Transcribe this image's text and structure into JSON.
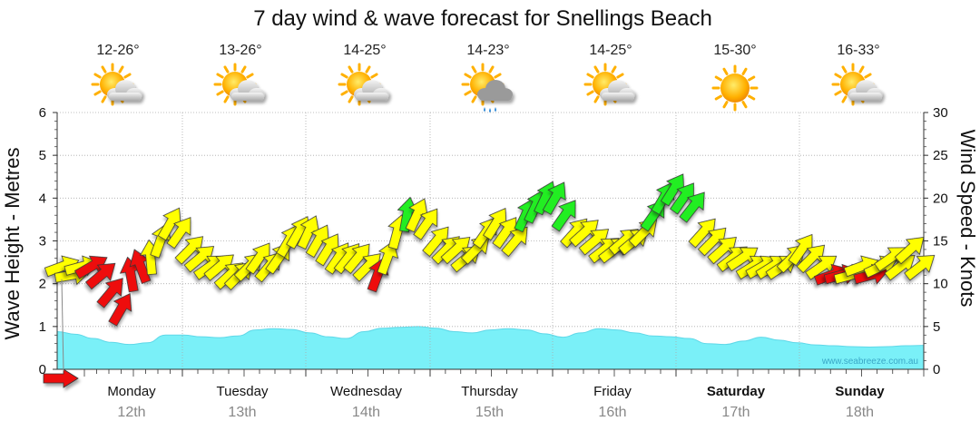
{
  "chart_data": {
    "type": "line",
    "title": "7 day wind & wave forecast for Snellings Beach",
    "y_left_label": "Wave Height - Metres",
    "y_right_label": "Wind Speed - Knots",
    "y_left_range": [
      0,
      6
    ],
    "y_left_ticks": [
      "0",
      "1",
      "2",
      "3",
      "4",
      "5",
      "6"
    ],
    "y_right_range": [
      0,
      30
    ],
    "y_right_ticks": [
      "0",
      "5",
      "10",
      "15",
      "20",
      "25",
      "30"
    ],
    "days": [
      {
        "name": "Monday",
        "date": "12th",
        "temp": "12-26°",
        "weather": "partly-cloudy",
        "bold": false
      },
      {
        "name": "Tuesday",
        "date": "13th",
        "temp": "13-26°",
        "weather": "partly-cloudy",
        "bold": false
      },
      {
        "name": "Wednesday",
        "date": "14th",
        "temp": "14-25°",
        "weather": "partly-cloudy",
        "bold": false
      },
      {
        "name": "Thursday",
        "date": "15th",
        "temp": "14-23°",
        "weather": "showers",
        "bold": false
      },
      {
        "name": "Friday",
        "date": "16th",
        "temp": "14-25°",
        "weather": "partly-cloudy",
        "bold": false
      },
      {
        "name": "Saturday",
        "date": "17th",
        "temp": "15-30°",
        "weather": "sunny",
        "bold": true
      },
      {
        "name": "Sunday",
        "date": "18th",
        "temp": "16-33°",
        "weather": "partly-cloudy",
        "bold": true
      }
    ],
    "wave_height_m": [
      0.88,
      0.82,
      0.72,
      0.63,
      0.58,
      0.62,
      0.8,
      0.8,
      0.76,
      0.74,
      0.78,
      0.92,
      0.95,
      0.93,
      0.85,
      0.76,
      0.72,
      0.88,
      0.96,
      0.98,
      1.0,
      0.96,
      0.88,
      0.85,
      0.92,
      0.95,
      0.92,
      0.83,
      0.75,
      0.85,
      0.95,
      0.92,
      0.85,
      0.78,
      0.76,
      0.72,
      0.6,
      0.58,
      0.66,
      0.75,
      0.68,
      0.62,
      0.57,
      0.55,
      0.53,
      0.52,
      0.53,
      0.55,
      0.56
    ],
    "wind_series": [
      {
        "kn": 12,
        "dir": 250,
        "c": "yellow"
      },
      {
        "kn": 11,
        "dir": 260,
        "c": "yellow"
      },
      {
        "kn": 12,
        "dir": 255,
        "c": "yellow"
      },
      {
        "kn": 12,
        "dir": 240,
        "c": "red"
      },
      {
        "kn": 11,
        "dir": 230,
        "c": "red"
      },
      {
        "kn": 9,
        "dir": 220,
        "c": "red"
      },
      {
        "kn": 7,
        "dir": 210,
        "c": "red"
      },
      {
        "kn": 11,
        "dir": 170,
        "c": "red"
      },
      {
        "kn": 12,
        "dir": 160,
        "c": "red"
      },
      {
        "kn": 13,
        "dir": 175,
        "c": "yellow"
      },
      {
        "kn": 15,
        "dir": 200,
        "c": "yellow"
      },
      {
        "kn": 17,
        "dir": 210,
        "c": "yellow"
      },
      {
        "kn": 16,
        "dir": 215,
        "c": "yellow"
      },
      {
        "kn": 14,
        "dir": 225,
        "c": "yellow"
      },
      {
        "kn": 13,
        "dir": 230,
        "c": "yellow"
      },
      {
        "kn": 12,
        "dir": 235,
        "c": "yellow"
      },
      {
        "kn": 12,
        "dir": 230,
        "c": "yellow"
      },
      {
        "kn": 11,
        "dir": 228,
        "c": "yellow"
      },
      {
        "kn": 11,
        "dir": 225,
        "c": "yellow"
      },
      {
        "kn": 12,
        "dir": 225,
        "c": "yellow"
      },
      {
        "kn": 13,
        "dir": 215,
        "c": "yellow"
      },
      {
        "kn": 12,
        "dir": 220,
        "c": "yellow"
      },
      {
        "kn": 13,
        "dir": 215,
        "c": "yellow"
      },
      {
        "kn": 15,
        "dir": 210,
        "c": "yellow"
      },
      {
        "kn": 16,
        "dir": 210,
        "c": "yellow"
      },
      {
        "kn": 16,
        "dir": 205,
        "c": "yellow"
      },
      {
        "kn": 15,
        "dir": 210,
        "c": "yellow"
      },
      {
        "kn": 14,
        "dir": 212,
        "c": "yellow"
      },
      {
        "kn": 13,
        "dir": 214,
        "c": "yellow"
      },
      {
        "kn": 13,
        "dir": 218,
        "c": "yellow"
      },
      {
        "kn": 13,
        "dir": 220,
        "c": "yellow"
      },
      {
        "kn": 12,
        "dir": 225,
        "c": "yellow"
      },
      {
        "kn": 11,
        "dir": 200,
        "c": "red"
      },
      {
        "kn": 13,
        "dir": 200,
        "c": "yellow"
      },
      {
        "kn": 16,
        "dir": 195,
        "c": "yellow"
      },
      {
        "kn": 18,
        "dir": 190,
        "c": "green"
      },
      {
        "kn": 18,
        "dir": 205,
        "c": "yellow"
      },
      {
        "kn": 17,
        "dir": 215,
        "c": "yellow"
      },
      {
        "kn": 15,
        "dir": 220,
        "c": "yellow"
      },
      {
        "kn": 14,
        "dir": 225,
        "c": "yellow"
      },
      {
        "kn": 14,
        "dir": 228,
        "c": "yellow"
      },
      {
        "kn": 13,
        "dir": 230,
        "c": "yellow"
      },
      {
        "kn": 14,
        "dir": 225,
        "c": "yellow"
      },
      {
        "kn": 16,
        "dir": 215,
        "c": "yellow"
      },
      {
        "kn": 17,
        "dir": 212,
        "c": "yellow"
      },
      {
        "kn": 16,
        "dir": 215,
        "c": "yellow"
      },
      {
        "kn": 15,
        "dir": 220,
        "c": "yellow"
      },
      {
        "kn": 18,
        "dir": 205,
        "c": "green"
      },
      {
        "kn": 19,
        "dir": 205,
        "c": "green"
      },
      {
        "kn": 20,
        "dir": 205,
        "c": "green"
      },
      {
        "kn": 20,
        "dir": 210,
        "c": "green"
      },
      {
        "kn": 18,
        "dir": 215,
        "c": "green"
      },
      {
        "kn": 16,
        "dir": 222,
        "c": "yellow"
      },
      {
        "kn": 16,
        "dir": 228,
        "c": "yellow"
      },
      {
        "kn": 15,
        "dir": 230,
        "c": "yellow"
      },
      {
        "kn": 14,
        "dir": 232,
        "c": "yellow"
      },
      {
        "kn": 14,
        "dir": 232,
        "c": "yellow"
      },
      {
        "kn": 15,
        "dir": 230,
        "c": "yellow"
      },
      {
        "kn": 15,
        "dir": 230,
        "c": "yellow"
      },
      {
        "kn": 16,
        "dir": 225,
        "c": "yellow"
      },
      {
        "kn": 18,
        "dir": 215,
        "c": "green"
      },
      {
        "kn": 20,
        "dir": 210,
        "c": "green"
      },
      {
        "kn": 21,
        "dir": 212,
        "c": "green"
      },
      {
        "kn": 20,
        "dir": 215,
        "c": "green"
      },
      {
        "kn": 19,
        "dir": 218,
        "c": "green"
      },
      {
        "kn": 16,
        "dir": 222,
        "c": "yellow"
      },
      {
        "kn": 15,
        "dir": 225,
        "c": "yellow"
      },
      {
        "kn": 14,
        "dir": 228,
        "c": "yellow"
      },
      {
        "kn": 13,
        "dir": 232,
        "c": "yellow"
      },
      {
        "kn": 13,
        "dir": 236,
        "c": "yellow"
      },
      {
        "kn": 12,
        "dir": 238,
        "c": "yellow"
      },
      {
        "kn": 12,
        "dir": 240,
        "c": "yellow"
      },
      {
        "kn": 12,
        "dir": 238,
        "c": "yellow"
      },
      {
        "kn": 12,
        "dir": 236,
        "c": "yellow"
      },
      {
        "kn": 13,
        "dir": 225,
        "c": "yellow"
      },
      {
        "kn": 14,
        "dir": 215,
        "c": "yellow"
      },
      {
        "kn": 13,
        "dir": 225,
        "c": "yellow"
      },
      {
        "kn": 12,
        "dir": 235,
        "c": "yellow"
      },
      {
        "kn": 11,
        "dir": 250,
        "c": "red"
      },
      {
        "kn": 11,
        "dir": 255,
        "c": "red"
      },
      {
        "kn": 11,
        "dir": 255,
        "c": "yellow"
      },
      {
        "kn": 12,
        "dir": 250,
        "c": "yellow"
      },
      {
        "kn": 11,
        "dir": 255,
        "c": "red"
      },
      {
        "kn": 12,
        "dir": 245,
        "c": "yellow"
      },
      {
        "kn": 13,
        "dir": 235,
        "c": "yellow"
      },
      {
        "kn": 12,
        "dir": 232,
        "c": "yellow"
      },
      {
        "kn": 14,
        "dir": 228,
        "c": "yellow"
      },
      {
        "kn": 12,
        "dir": 232,
        "c": "yellow"
      }
    ],
    "first_arrow": {
      "kn": 0,
      "dir": 270,
      "c": "red"
    },
    "watermark": "www.seabreeze.com.au",
    "colors": {
      "wave_fill": "#7af0f8",
      "wave_line": "#5fd8e8",
      "arrow_yellow": "#ffff00",
      "arrow_red": "#ee1111",
      "arrow_green": "#22ee22",
      "grid": "#aaaaaa"
    }
  }
}
